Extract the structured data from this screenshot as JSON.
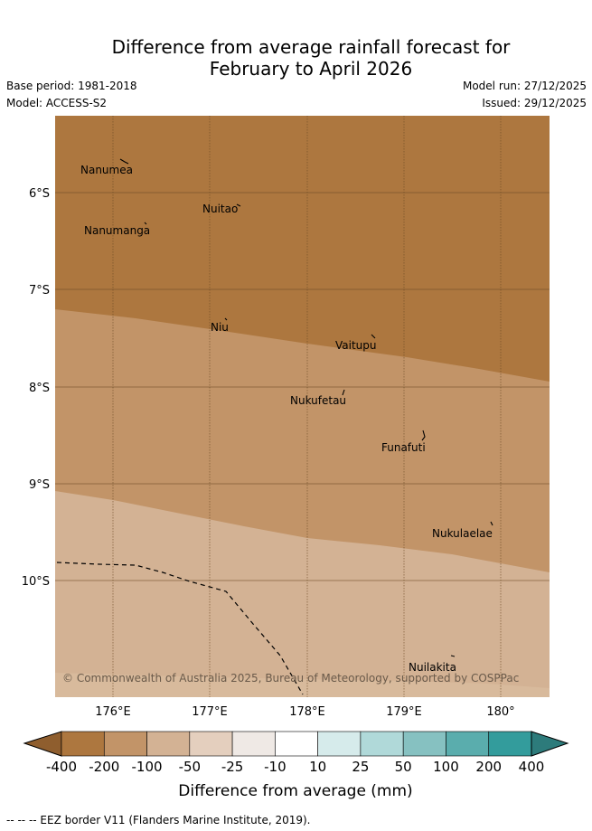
{
  "title": {
    "line1": "Difference from average rainfall forecast for",
    "line2": "February to April 2026"
  },
  "meta": {
    "base_period": "Base period: 1981-2018",
    "model": "Model: ACCESS-S2",
    "model_run": "Model run: 27/12/2025",
    "issued": "Issued: 29/12/2025"
  },
  "map": {
    "lat_labels": [
      "6°S",
      "7°S",
      "8°S",
      "9°S",
      "10°S"
    ],
    "lon_labels": [
      "176°E",
      "177°E",
      "178°E",
      "179°E",
      "180°"
    ],
    "islands": [
      {
        "name": "Nanumea"
      },
      {
        "name": "Nuitao"
      },
      {
        "name": "Nanumanga"
      },
      {
        "name": "Niu"
      },
      {
        "name": "Vaitupu"
      },
      {
        "name": "Nukufetau"
      },
      {
        "name": "Funafuti"
      },
      {
        "name": "Nukulaelae"
      },
      {
        "name": "Nuilakita"
      }
    ],
    "copyright": "© Commonwealth of Australia 2025, Bureau of Meteorology, supported by COSPPac",
    "zone_colors": {
      "below_200": "#ad773f",
      "below_100": "#c29468",
      "below_50": "#d3b294"
    }
  },
  "colorbar": {
    "labels": [
      "-400",
      "-200",
      "-100",
      "-50",
      "-25",
      "-10",
      "10",
      "25",
      "50",
      "100",
      "200",
      "400"
    ],
    "colors": [
      "#ad773f",
      "#c29468",
      "#d3b294",
      "#e4cfbe",
      "#efe9e5",
      "#ffffff",
      "#d6ebeb",
      "#b0d9d9",
      "#86c1c1",
      "#5aadad",
      "#339c9c"
    ],
    "low_extension_color": "#8f5e2e",
    "high_extension_color": "#2d7b7b",
    "label": "Difference from average (mm)"
  },
  "footer": {
    "eez": "--  --  -- EEZ border V11 (Flanders Marine Institute, 2019)."
  }
}
